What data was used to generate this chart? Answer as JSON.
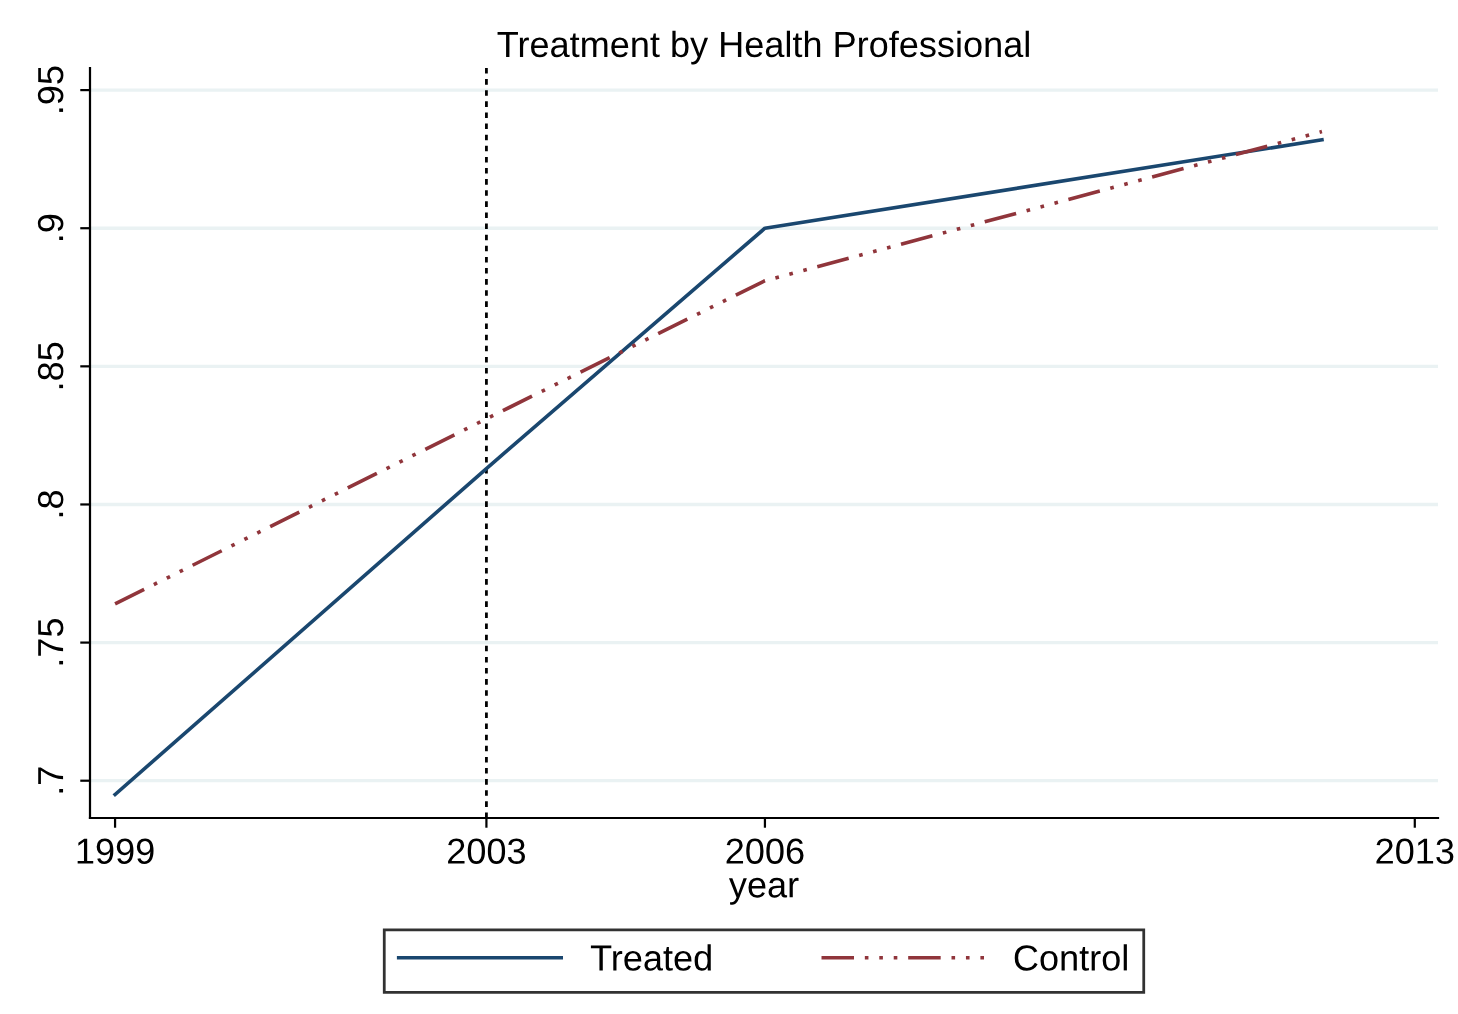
{
  "chart_data": {
    "type": "line",
    "title": "Treatment by Health Professional",
    "xlabel": "year",
    "x": [
      1999,
      2003,
      2006,
      2012
    ],
    "series": [
      {
        "name": "Treated",
        "color": "#1a476f",
        "values": [
          0.695,
          0.813,
          0.9,
          0.932
        ],
        "line_style": "solid"
      },
      {
        "name": "Control",
        "color": "#90353b",
        "values": [
          0.764,
          0.831,
          0.881,
          0.935
        ],
        "line_style": "dashed"
      }
    ],
    "xlim": [
      1998.73,
      2013.25
    ],
    "xticks": [
      1999,
      2003,
      2006,
      2013
    ],
    "ylim": [
      0.6865,
      0.958
    ],
    "yticks": [
      {
        "value": 0.7,
        "label": ".7"
      },
      {
        "value": 0.75,
        "label": ".75"
      },
      {
        "value": 0.8,
        "label": ".8"
      },
      {
        "value": 0.85,
        "label": ".85"
      },
      {
        "value": 0.9,
        "label": ".9"
      },
      {
        "value": 0.95,
        "label": ".95"
      }
    ],
    "ref_lines": [
      {
        "axis": "x",
        "value": 2003,
        "color": "#000000",
        "line_style": "dotted"
      }
    ],
    "grid": "y",
    "legend": "bottom",
    "marker": "none"
  }
}
